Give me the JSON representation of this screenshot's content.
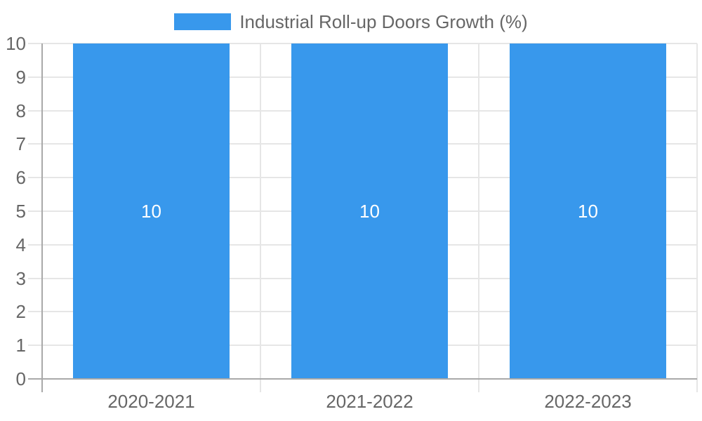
{
  "legend": {
    "label": "Industrial Roll-up Doors Growth (%)"
  },
  "chart_data": {
    "type": "bar",
    "title": "Industrial Roll-up Doors Growth (%)",
    "categories": [
      "2020-2021",
      "2021-2022",
      "2022-2023"
    ],
    "series": [
      {
        "name": "Industrial Roll-up Doors Growth (%)",
        "values": [
          10,
          10,
          10
        ]
      }
    ],
    "bar_value_labels": [
      "10",
      "10",
      "10"
    ],
    "xlabel": "",
    "ylabel": "",
    "ylim": [
      0,
      10
    ],
    "yticks": [
      0,
      1,
      2,
      3,
      4,
      5,
      6,
      7,
      8,
      9,
      10
    ],
    "grid": true,
    "legend_position": "top",
    "colors": {
      "bar": "#3898ec",
      "axis_text": "#666666",
      "bar_label_text": "#ffffff",
      "gridline": "#e6e6e6",
      "axis_line": "#a9a9a9"
    }
  }
}
